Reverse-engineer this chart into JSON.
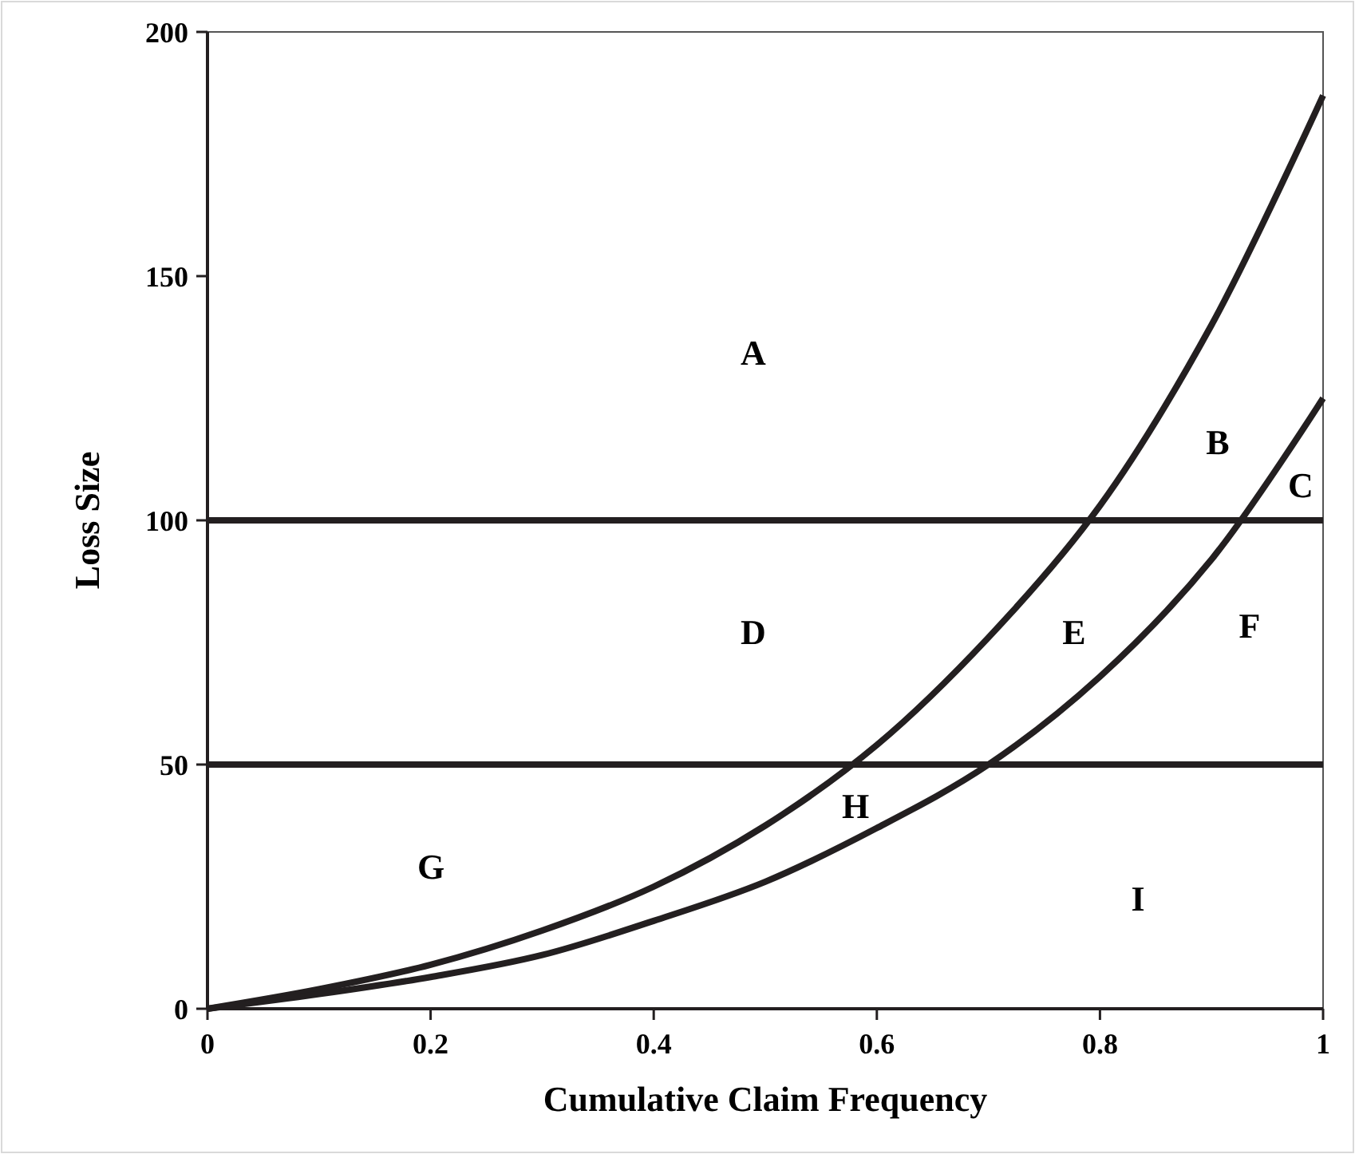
{
  "chart_data": {
    "type": "line",
    "xlabel": "Cumulative Claim Frequency",
    "ylabel": "Loss Size",
    "xlim": [
      0,
      1
    ],
    "xticks": [
      0,
      0.2,
      0.4,
      0.6,
      0.8,
      1
    ],
    "ylim": [
      0,
      200
    ],
    "yticks": [
      0,
      50,
      100,
      150,
      200
    ],
    "grid": false,
    "marker": "none",
    "line_style": "solid",
    "series": [
      {
        "color": "#231f20",
        "x": [
          0,
          0.1,
          0.2,
          0.3,
          0.4,
          0.5,
          0.6,
          0.7,
          0.8,
          0.9,
          1
        ],
        "values": [
          0,
          4,
          9,
          16,
          25,
          37.5,
          54,
          76,
          103,
          140,
          187
        ]
      },
      {
        "color": "#231f20",
        "x": [
          0,
          0.1,
          0.2,
          0.3,
          0.4,
          0.5,
          0.6,
          0.7,
          0.8,
          0.9,
          1
        ],
        "values": [
          0,
          3,
          6.5,
          11,
          18,
          26,
          37,
          50,
          68,
          92,
          125
        ]
      }
    ],
    "ref_lines": [
      {
        "axis": "y",
        "value": 100,
        "color": "#231f20"
      },
      {
        "axis": "y",
        "value": 50,
        "color": "#231f20"
      }
    ],
    "annotations": [
      "A",
      "B",
      "C",
      "D",
      "E",
      "F",
      "G",
      "H",
      "I"
    ]
  }
}
